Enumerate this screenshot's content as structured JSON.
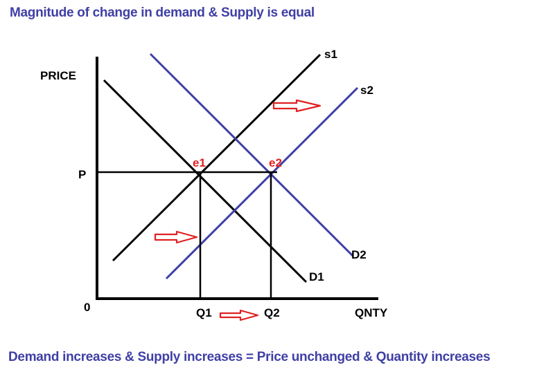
{
  "title": "Magnitude of change in demand & Supply is equal",
  "conclusion": "Demand increases & Supply increases = Price unchanged & Quantity increases",
  "axes": {
    "y_label": "PRICE",
    "x_label": "QNTY",
    "origin": "0"
  },
  "curves": {
    "s1": "s1",
    "s2": "s2",
    "d1": "D1",
    "d2": "D2"
  },
  "equilibria": {
    "e1": "e1",
    "e2": "e2"
  },
  "levels": {
    "price": "P",
    "q1": "Q1",
    "q2": "Q2"
  },
  "colors": {
    "heading": "#3f3fa6",
    "original_curves": "#000000",
    "shifted_curves": "#3f3fa6",
    "equilibrium_labels": "#e02020",
    "shift_arrows": "#e02020"
  }
}
